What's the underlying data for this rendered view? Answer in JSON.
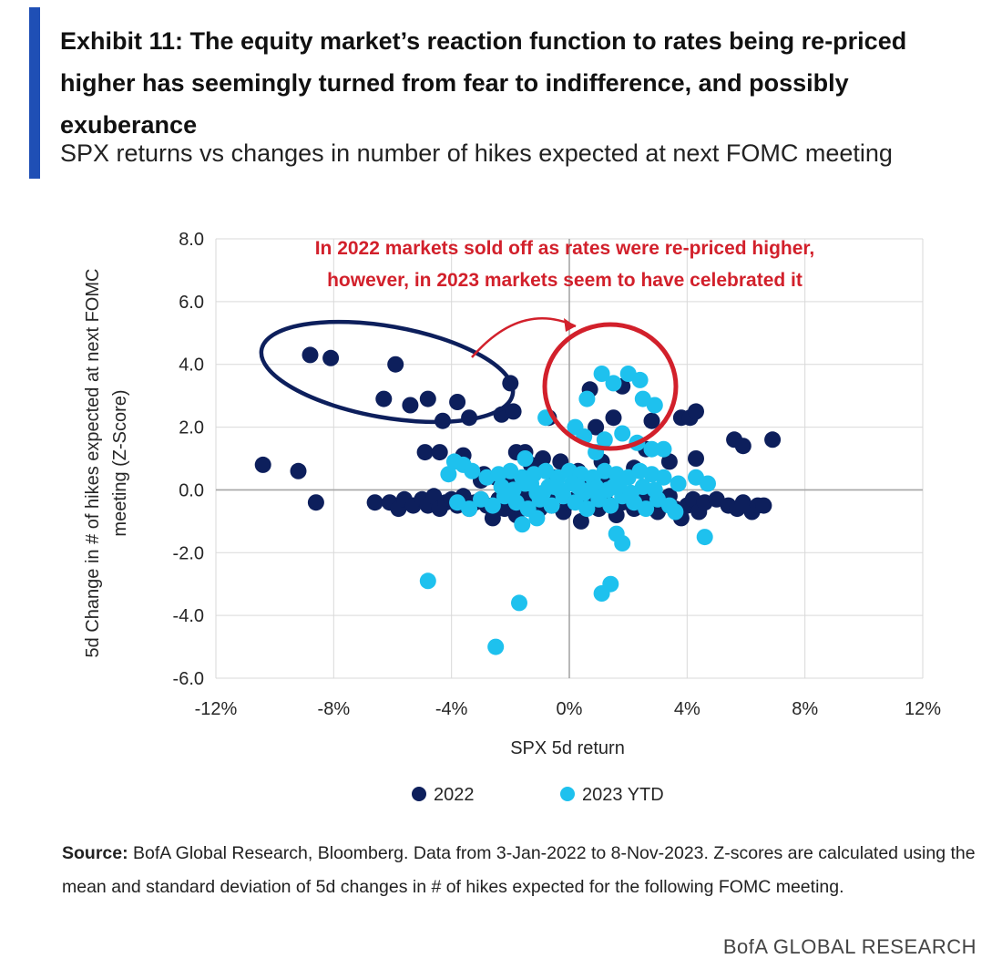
{
  "header": {
    "title": "Exhibit 11: The equity market’s reaction function to rates being re-priced higher has seemingly turned from fear to indifference, and possibly exuberance",
    "subtitle": "SPX returns vs changes in number of hikes expected at next FOMC meeting"
  },
  "colors": {
    "accent": "#1f4fb5",
    "series_2022": "#0d1f5c",
    "series_2023": "#1ec1ee",
    "annotation": "#d2202b"
  },
  "footer": {
    "source_label": "Source:",
    "source_text": "BofA Global Research, Bloomberg. Data from 3-Jan-2022 to 8-Nov-2023. Z-scores are calculated using the mean and standard deviation of 5d changes in # of hikes expected for the following FOMC meeting.",
    "brand": "BofA GLOBAL RESEARCH"
  },
  "chart_data": {
    "type": "scatter",
    "xlabel": "SPX 5d return",
    "ylabel_line1": "5d Change in # of hikes expected at next FOMC",
    "ylabel_line2": "meeting (Z-Score)",
    "xlim": [
      -12,
      12
    ],
    "ylim": [
      -6,
      8
    ],
    "x_ticks": [
      -12,
      -8,
      -4,
      0,
      4,
      8,
      12
    ],
    "x_tick_labels": [
      "-12%",
      "-8%",
      "-4%",
      "0%",
      "4%",
      "8%",
      "12%"
    ],
    "y_ticks": [
      -6,
      -4,
      -2,
      0,
      2,
      4,
      6,
      8
    ],
    "y_tick_labels": [
      "-6.0",
      "-4.0",
      "-2.0",
      "0.0",
      "2.0",
      "4.0",
      "6.0",
      "8.0"
    ],
    "grid": true,
    "legend_position": "bottom",
    "annotation": {
      "line1": "In 2022 markets sold off as rates were re-priced higher,",
      "line2": "however, in 2023 markets seem to have celebrated it"
    },
    "series": [
      {
        "name": "2022",
        "points": [
          [
            -10.4,
            0.8
          ],
          [
            -9.2,
            0.6
          ],
          [
            -8.6,
            -0.4
          ],
          [
            -8.8,
            4.3
          ],
          [
            -8.1,
            4.2
          ],
          [
            -5.9,
            4.0
          ],
          [
            -6.3,
            2.9
          ],
          [
            -5.4,
            2.7
          ],
          [
            -4.8,
            2.9
          ],
          [
            -3.8,
            2.8
          ],
          [
            -4.3,
            2.2
          ],
          [
            -3.4,
            2.3
          ],
          [
            -2.3,
            2.4
          ],
          [
            -1.9,
            2.5
          ],
          [
            -2.0,
            3.4
          ],
          [
            -4.9,
            1.2
          ],
          [
            -4.4,
            1.2
          ],
          [
            -3.6,
            1.1
          ],
          [
            -1.8,
            1.2
          ],
          [
            -2.9,
            0.5
          ],
          [
            -6.6,
            -0.4
          ],
          [
            -6.1,
            -0.4
          ],
          [
            -5.8,
            -0.6
          ],
          [
            -5.6,
            -0.3
          ],
          [
            -5.3,
            -0.5
          ],
          [
            -5.0,
            -0.3
          ],
          [
            -4.8,
            -0.5
          ],
          [
            -4.6,
            -0.2
          ],
          [
            -4.4,
            -0.6
          ],
          [
            -4.2,
            -0.4
          ],
          [
            -4.0,
            -0.3
          ],
          [
            -3.8,
            -0.5
          ],
          [
            -3.6,
            -0.2
          ],
          [
            -3.4,
            -0.6
          ],
          [
            -3.2,
            -0.4
          ],
          [
            -3.0,
            -0.3
          ],
          [
            -2.8,
            -0.5
          ],
          [
            -2.6,
            -0.9
          ],
          [
            -2.4,
            -0.3
          ],
          [
            -2.2,
            -0.6
          ],
          [
            -2.0,
            -0.4
          ],
          [
            -1.8,
            -0.8
          ],
          [
            -1.6,
            -0.3
          ],
          [
            -1.4,
            -0.5
          ],
          [
            -1.2,
            -0.2
          ],
          [
            -1.0,
            -0.6
          ],
          [
            -0.8,
            -0.3
          ],
          [
            -0.6,
            -0.5
          ],
          [
            -0.4,
            -0.2
          ],
          [
            -0.2,
            -0.7
          ],
          [
            0.0,
            -0.4
          ],
          [
            0.2,
            -0.3
          ],
          [
            0.4,
            -1.0
          ],
          [
            0.6,
            -0.5
          ],
          [
            0.8,
            -0.2
          ],
          [
            1.0,
            -0.6
          ],
          [
            1.2,
            -0.3
          ],
          [
            1.4,
            -0.5
          ],
          [
            1.6,
            -0.8
          ],
          [
            1.8,
            -0.4
          ],
          [
            2.0,
            -0.2
          ],
          [
            2.2,
            -0.6
          ],
          [
            2.4,
            -0.4
          ],
          [
            2.6,
            -0.3
          ],
          [
            2.8,
            -0.5
          ],
          [
            3.0,
            -0.7
          ],
          [
            3.2,
            -0.4
          ],
          [
            3.4,
            -0.2
          ],
          [
            3.6,
            -0.6
          ],
          [
            3.8,
            -0.9
          ],
          [
            4.0,
            -0.5
          ],
          [
            4.2,
            -0.3
          ],
          [
            4.4,
            -0.7
          ],
          [
            4.6,
            -0.4
          ],
          [
            5.0,
            -0.3
          ],
          [
            5.4,
            -0.5
          ],
          [
            5.7,
            -0.6
          ],
          [
            5.9,
            -0.4
          ],
          [
            6.2,
            -0.7
          ],
          [
            6.4,
            -0.5
          ],
          [
            6.6,
            -0.5
          ],
          [
            1.5,
            2.3
          ],
          [
            2.8,
            2.2
          ],
          [
            3.8,
            2.3
          ],
          [
            4.1,
            2.3
          ],
          [
            4.3,
            2.5
          ],
          [
            4.3,
            1.0
          ],
          [
            5.6,
            1.6
          ],
          [
            5.9,
            1.4
          ],
          [
            6.9,
            1.6
          ],
          [
            1.8,
            3.3
          ],
          [
            0.7,
            3.2
          ],
          [
            0.9,
            2.0
          ],
          [
            -0.7,
            2.3
          ],
          [
            -1.5,
            1.2
          ],
          [
            2.6,
            1.3
          ],
          [
            3.4,
            0.9
          ],
          [
            -2.1,
            0.2
          ],
          [
            -1.3,
            0.8
          ],
          [
            -0.5,
            0.4
          ],
          [
            -0.9,
            1.0
          ],
          [
            0.3,
            0.6
          ],
          [
            1.1,
            0.9
          ],
          [
            -3.0,
            0.3
          ],
          [
            -0.3,
            0.9
          ],
          [
            1.3,
            0.4
          ],
          [
            2.2,
            0.7
          ],
          [
            -1.6,
            0.1
          ],
          [
            0.5,
            0.2
          ],
          [
            -2.5,
            0.4
          ]
        ]
      },
      {
        "name": "2023 YTD",
        "points": [
          [
            1.1,
            3.7
          ],
          [
            1.5,
            3.4
          ],
          [
            2.0,
            3.7
          ],
          [
            2.4,
            3.5
          ],
          [
            0.6,
            2.9
          ],
          [
            2.5,
            2.9
          ],
          [
            2.9,
            2.7
          ],
          [
            0.2,
            2.0
          ],
          [
            -0.8,
            2.3
          ],
          [
            0.5,
            1.7
          ],
          [
            1.2,
            1.6
          ],
          [
            1.8,
            1.8
          ],
          [
            2.3,
            1.5
          ],
          [
            2.8,
            1.3
          ],
          [
            3.2,
            1.3
          ],
          [
            0.9,
            1.2
          ],
          [
            -1.5,
            1.0
          ],
          [
            -3.9,
            0.9
          ],
          [
            -3.6,
            0.8
          ],
          [
            -4.1,
            0.5
          ],
          [
            -3.3,
            0.6
          ],
          [
            -2.8,
            0.4
          ],
          [
            -2.4,
            0.5
          ],
          [
            -2.0,
            0.6
          ],
          [
            -1.6,
            0.4
          ],
          [
            -1.2,
            0.5
          ],
          [
            -0.8,
            0.6
          ],
          [
            -0.4,
            0.4
          ],
          [
            0.0,
            0.6
          ],
          [
            0.4,
            0.5
          ],
          [
            0.8,
            0.4
          ],
          [
            1.2,
            0.6
          ],
          [
            1.6,
            0.5
          ],
          [
            2.0,
            0.4
          ],
          [
            2.4,
            0.6
          ],
          [
            2.8,
            0.5
          ],
          [
            3.2,
            0.4
          ],
          [
            3.7,
            0.2
          ],
          [
            4.3,
            0.4
          ],
          [
            4.7,
            0.2
          ],
          [
            -3.8,
            -0.4
          ],
          [
            -3.4,
            -0.6
          ],
          [
            -3.0,
            -0.3
          ],
          [
            -2.6,
            -0.5
          ],
          [
            -2.2,
            -0.2
          ],
          [
            -1.8,
            -0.4
          ],
          [
            -1.4,
            -0.6
          ],
          [
            -1.0,
            -0.3
          ],
          [
            -0.6,
            -0.5
          ],
          [
            -0.2,
            -0.2
          ],
          [
            0.2,
            -0.4
          ],
          [
            0.6,
            -0.6
          ],
          [
            1.0,
            -0.3
          ],
          [
            1.4,
            -0.5
          ],
          [
            1.8,
            -0.2
          ],
          [
            2.2,
            -0.4
          ],
          [
            2.6,
            -0.6
          ],
          [
            3.0,
            -0.3
          ],
          [
            3.4,
            -0.5
          ],
          [
            3.6,
            -0.7
          ],
          [
            -2.3,
            0.1
          ],
          [
            -1.9,
            0.0
          ],
          [
            -1.5,
            0.2
          ],
          [
            -1.1,
            -0.1
          ],
          [
            -0.7,
            0.1
          ],
          [
            -0.3,
            0.0
          ],
          [
            0.1,
            0.2
          ],
          [
            0.5,
            -0.1
          ],
          [
            0.9,
            0.1
          ],
          [
            1.3,
            0.0
          ],
          [
            1.7,
            0.2
          ],
          [
            2.1,
            -0.1
          ],
          [
            2.5,
            0.1
          ],
          [
            2.9,
            0.0
          ],
          [
            -1.3,
            0.2
          ],
          [
            -0.5,
            0.1
          ],
          [
            0.7,
            0.0
          ],
          [
            1.5,
            0.1
          ],
          [
            -0.9,
            -0.1
          ],
          [
            0.3,
            0.1
          ],
          [
            -1.6,
            -1.1
          ],
          [
            -1.1,
            -0.9
          ],
          [
            1.6,
            -1.4
          ],
          [
            1.8,
            -1.7
          ],
          [
            4.6,
            -1.5
          ],
          [
            -4.8,
            -2.9
          ],
          [
            -1.7,
            -3.6
          ],
          [
            1.1,
            -3.3
          ],
          [
            1.4,
            -3.0
          ],
          [
            -2.5,
            -5.0
          ]
        ]
      }
    ]
  }
}
